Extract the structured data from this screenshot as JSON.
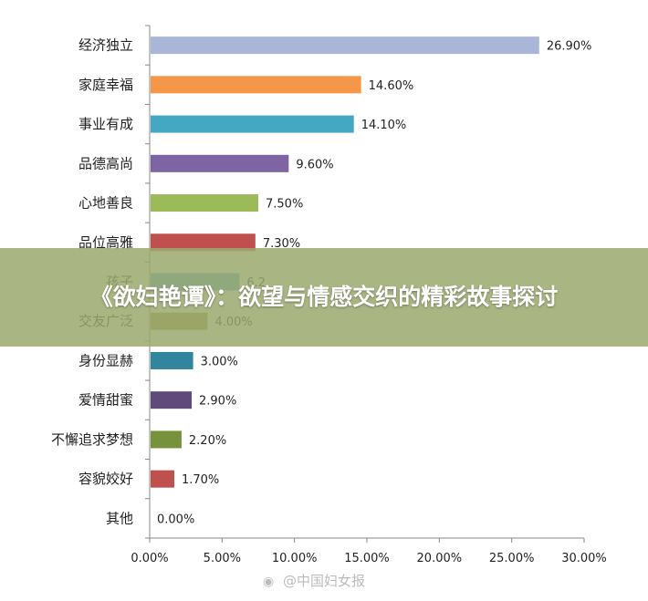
{
  "chart_data": {
    "type": "bar",
    "orientation": "horizontal",
    "title": "",
    "xlabel": "",
    "ylabel": "",
    "xlim": [
      0,
      30
    ],
    "x_ticks": [
      "0.00%",
      "5.00%",
      "10.00%",
      "15.00%",
      "20.00%",
      "25.00%",
      "30.00%"
    ],
    "grid": false,
    "legend": "none",
    "categories": [
      "经济独立",
      "家庭幸福",
      "事业有成",
      "品德高尚",
      "心地善良",
      "品位高雅",
      "孩子",
      "交友广泛",
      "身份显赫",
      "爱情甜蜜",
      "不懈追求梦想",
      "容貌姣好",
      "其他"
    ],
    "values": [
      26.9,
      14.6,
      14.1,
      9.6,
      7.5,
      7.3,
      6.2,
      4.0,
      3.0,
      2.9,
      2.2,
      1.7,
      0.0
    ],
    "value_labels": [
      "26.90%",
      "14.60%",
      "14.10%",
      "9.60%",
      "7.50%",
      "7.30%",
      "6.2",
      "4.00%",
      "3.00%",
      "2.90%",
      "2.20%",
      "1.70%",
      "0.00%"
    ],
    "colors": [
      "#a9b6d8",
      "#f4974a",
      "#45a8c2",
      "#7f64a3",
      "#9bbb59",
      "#c0504d",
      "#4bacc6",
      "#9c9540",
      "#31859c",
      "#604a7b",
      "#76923c",
      "#c0504d",
      "#4f81bd"
    ]
  },
  "banner": {
    "title": "《欲妇艳谭》：欲望与情感交织的精彩故事探讨"
  },
  "watermark": {
    "text": "@中国妇女报",
    "icon": "weibo-icon"
  }
}
